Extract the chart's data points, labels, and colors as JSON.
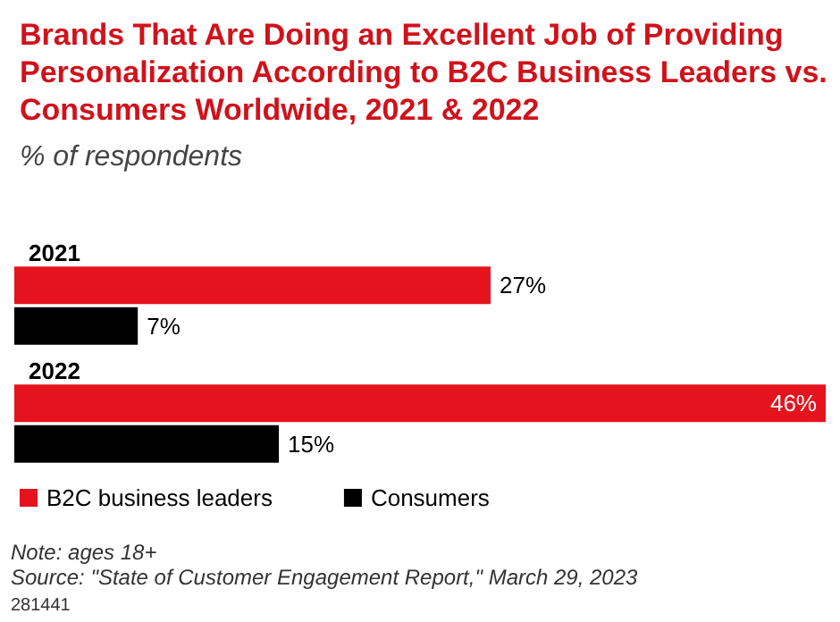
{
  "chart_data": {
    "type": "bar",
    "orientation": "horizontal",
    "title": "Brands That Are Doing an Excellent Job of Providing Personalization According to B2C Business Leaders vs. Consumers Worldwide, 2021 & 2022",
    "subtitle": "% of respondents",
    "categories": [
      "2021",
      "2022"
    ],
    "series": [
      {
        "name": "B2C business leaders",
        "color": "#e5131d",
        "values": [
          27,
          46
        ],
        "value_labels": [
          "27%",
          "46%"
        ]
      },
      {
        "name": "Consumers",
        "color": "#000000",
        "values": [
          7,
          15
        ],
        "value_labels": [
          "7%",
          "15%"
        ]
      }
    ],
    "legend": "bottom left",
    "annotations": [
      "Note: ages 18+",
      "Source: \"State of Customer Engagement Report,\" March 29, 2023",
      "281441"
    ]
  }
}
